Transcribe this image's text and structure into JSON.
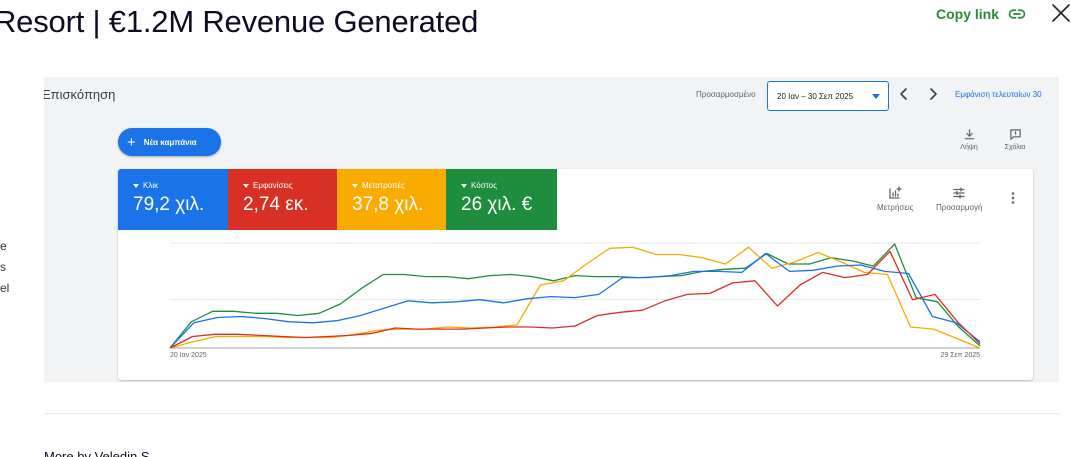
{
  "header": {
    "title": "Resort | €1.2M Revenue Generated",
    "copy_link_label": "Copy link"
  },
  "side_text": [
    "e",
    "s",
    "el"
  ],
  "dashboard": {
    "overview_title": "Επισκόπηση",
    "date_range_label": "Προσαρμοσμένο",
    "date_range_value": "20 Ιαν – 30 Σεπ 2025",
    "show_last_label": "Εμφάνιση τελευταίων 30",
    "new_campaign_label": "Νέα καμπάνια",
    "download_label": "Λήψη",
    "feedback_label": "Σχόλια",
    "metrics": [
      {
        "label": "Κλικ",
        "value": "79,2 χιλ.",
        "color": "#1a73e8"
      },
      {
        "label": "Εμφανίσεις",
        "value": "2,74 εκ.",
        "color": "#d93025"
      },
      {
        "label": "Μετατροπές",
        "value": "37,8 χιλ.",
        "color": "#f9ab00"
      },
      {
        "label": "Κόστος",
        "value": "26 χιλ. €",
        "color": "#1e8e3e"
      }
    ],
    "metrics_tool_label": "Μετρήσεις",
    "adjust_tool_label": "Προσαρμογή"
  },
  "chart_data": {
    "type": "line",
    "x_start_label": "20 Ιαν 2025",
    "x_end_label": "29 Σεπ 2025",
    "ylim": [
      0,
      100
    ],
    "grid": true,
    "series": [
      {
        "color": "#1e8e3e",
        "values": [
          0,
          25,
          35,
          35,
          33,
          33,
          31,
          33,
          42,
          57,
          70,
          70,
          68,
          68,
          66,
          69,
          70,
          68,
          64,
          69,
          68,
          68,
          67,
          68,
          69,
          73,
          75,
          76,
          90,
          80,
          80,
          86,
          83,
          78,
          99,
          48,
          44,
          20,
          2
        ]
      },
      {
        "color": "#f9ab00",
        "values": [
          0,
          6,
          11,
          11,
          11,
          10,
          10,
          10,
          13,
          17,
          18,
          18,
          20,
          19,
          20,
          22,
          60,
          64,
          80,
          95,
          96,
          89,
          89,
          86,
          80,
          96,
          76,
          82,
          91,
          82,
          72,
          70,
          20,
          18,
          9,
          0
        ]
      },
      {
        "color": "#1a73e8",
        "values": [
          0,
          24,
          29,
          30,
          28,
          25,
          24,
          26,
          31,
          38,
          45,
          43,
          44,
          46,
          43,
          47,
          49,
          48,
          51,
          67,
          67,
          69,
          73,
          73,
          72,
          90,
          73,
          74,
          78,
          79,
          73,
          71,
          30,
          24,
          6
        ]
      },
      {
        "color": "#d93025",
        "values": [
          0,
          11,
          13,
          13,
          12,
          11,
          10,
          11,
          12,
          14,
          19,
          18,
          18,
          18,
          19,
          20,
          20,
          19,
          21,
          31,
          34,
          36,
          45,
          51,
          52,
          62,
          64,
          40,
          60,
          72,
          67,
          70,
          92,
          46,
          51,
          25,
          4
        ]
      }
    ]
  }
}
